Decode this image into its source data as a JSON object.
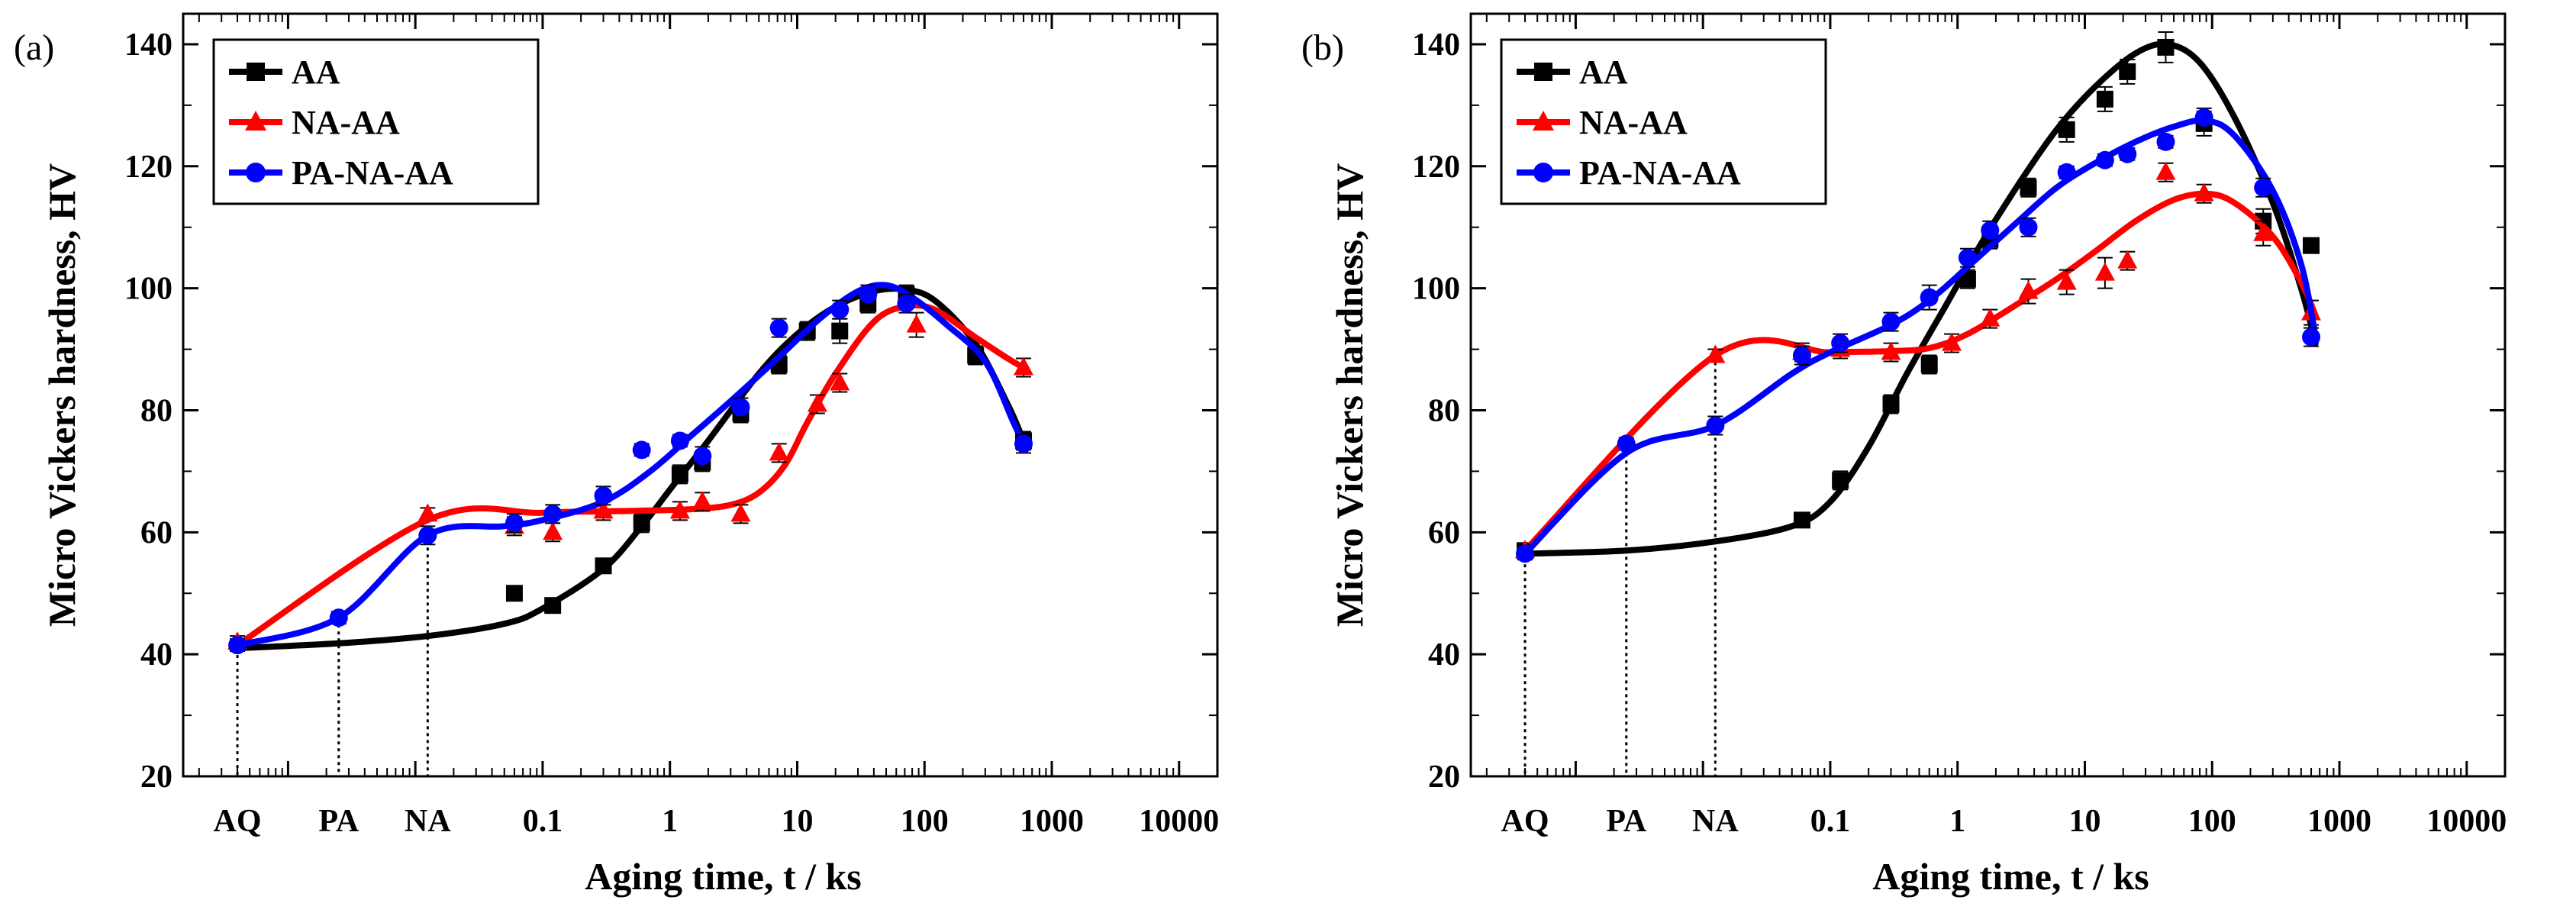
{
  "figure": {
    "x_axis_title": "Aging time, t / ks",
    "y_axis_title": "Micro Vickers hardness, HV"
  },
  "chart_data": [
    {
      "type": "scatter",
      "panel_label": "(a)",
      "x_scale": "log",
      "xlim": [
        0.00015,
        20000
      ],
      "ylim": [
        20,
        145
      ],
      "y_ticks": [
        20,
        40,
        60,
        80,
        100,
        120,
        140
      ],
      "x_ticks": [
        {
          "label": "AQ",
          "x": 0.0004
        },
        {
          "label": "PA",
          "x": 0.0025
        },
        {
          "label": "NA",
          "x": 0.0125
        },
        {
          "label": "0.1",
          "x": 0.1
        },
        {
          "label": "1",
          "x": 1
        },
        {
          "label": "10",
          "x": 10
        },
        {
          "label": "100",
          "x": 100
        },
        {
          "label": "1000",
          "x": 1000
        },
        {
          "label": "10000",
          "x": 10000
        }
      ],
      "drop_lines": [
        {
          "x": 0.0004,
          "y": 41
        },
        {
          "x": 0.0025,
          "y": 46
        },
        {
          "x": 0.0125,
          "y": 62
        }
      ],
      "legend_position": "top-left",
      "series": [
        {
          "name": "AA",
          "color": "#000000",
          "marker": "square",
          "points": [
            [
              0.06,
              50
            ],
            [
              0.12,
              48
            ],
            [
              0.3,
              54.5
            ],
            [
              0.6,
              61.5
            ],
            [
              1.2,
              69.5
            ],
            [
              1.8,
              71.5
            ],
            [
              3.6,
              79.5
            ],
            [
              7.2,
              87.5
            ],
            [
              12,
              93
            ],
            [
              21.6,
              93
            ],
            [
              36,
              97.5
            ],
            [
              72,
              99
            ],
            [
              252,
              89
            ],
            [
              600,
              75
            ]
          ],
          "errors": [
            1,
            1,
            1,
            1.5,
            1.5,
            1.5,
            1.5,
            1.5,
            1.5,
            2,
            1.5,
            1.5,
            1.5,
            1.5
          ],
          "curve": [
            [
              0.0004,
              41
            ],
            [
              0.0025,
              41.8
            ],
            [
              0.0125,
              43
            ],
            [
              0.05,
              45
            ],
            [
              0.1,
              47.5
            ],
            [
              0.3,
              54
            ],
            [
              0.6,
              61
            ],
            [
              1,
              67
            ],
            [
              2,
              75
            ],
            [
              5,
              86
            ],
            [
              10,
              92.5
            ],
            [
              20,
              97
            ],
            [
              40,
              99.5
            ],
            [
              70,
              99.8
            ],
            [
              120,
              98
            ],
            [
              250,
              91
            ],
            [
              450,
              81
            ],
            [
              600,
              75
            ]
          ]
        },
        {
          "name": "NA-AA",
          "color": "#ff0000",
          "marker": "triangle",
          "points": [
            [
              0.0004,
              42
            ],
            [
              0.0125,
              63
            ],
            [
              0.06,
              61
            ],
            [
              0.12,
              60
            ],
            [
              0.3,
              63.5
            ],
            [
              1.2,
              63.5
            ],
            [
              1.8,
              65
            ],
            [
              3.6,
              63
            ],
            [
              7.2,
              73
            ],
            [
              14.4,
              81
            ],
            [
              21.6,
              84.5
            ],
            [
              86.4,
              94
            ],
            [
              600,
              87
            ]
          ],
          "errors": [
            1,
            1,
            1.5,
            1.5,
            1.5,
            1.5,
            1.5,
            1.5,
            1.5,
            1.5,
            1.5,
            2,
            1.5
          ],
          "curve": [
            [
              0.0004,
              41.5
            ],
            [
              0.0125,
              62
            ],
            [
              0.1,
              63.2
            ],
            [
              0.5,
              63.5
            ],
            [
              1.5,
              63.8
            ],
            [
              3,
              64.5
            ],
            [
              5,
              66.5
            ],
            [
              8,
              71
            ],
            [
              12,
              78
            ],
            [
              20,
              86
            ],
            [
              40,
              94.5
            ],
            [
              70,
              97
            ],
            [
              120,
              96.5
            ],
            [
              250,
              92
            ],
            [
              450,
              88.5
            ],
            [
              600,
              87
            ]
          ]
        },
        {
          "name": "PA-NA-AA",
          "color": "#0000ff",
          "marker": "circle",
          "points": [
            [
              0.0004,
              41.5
            ],
            [
              0.0025,
              46
            ],
            [
              0.0125,
              59.5
            ],
            [
              0.06,
              61.5
            ],
            [
              0.12,
              63
            ],
            [
              0.3,
              66
            ],
            [
              0.6,
              73.5
            ],
            [
              1.2,
              75
            ],
            [
              1.8,
              72.5
            ],
            [
              3.6,
              80.5
            ],
            [
              7.2,
              93.5
            ],
            [
              21.6,
              96.5
            ],
            [
              36,
              99
            ],
            [
              72,
              97.5
            ],
            [
              600,
              74.5
            ]
          ],
          "errors": [
            1,
            1,
            1.5,
            1.5,
            1.5,
            1.5,
            1,
            1,
            1.5,
            1.5,
            1.5,
            1.5,
            1.5,
            1.5,
            1.5
          ],
          "curve": [
            [
              0.0004,
              41.5
            ],
            [
              0.0025,
              46
            ],
            [
              0.0125,
              59.5
            ],
            [
              0.05,
              61
            ],
            [
              0.1,
              62
            ],
            [
              0.3,
              65
            ],
            [
              0.7,
              70
            ],
            [
              1.5,
              76
            ],
            [
              3,
              81.5
            ],
            [
              7,
              88.5
            ],
            [
              15,
              95
            ],
            [
              30,
              99.5
            ],
            [
              50,
              100.5
            ],
            [
              80,
              98.5
            ],
            [
              150,
              94
            ],
            [
              300,
              88
            ],
            [
              500,
              78
            ],
            [
              600,
              74.5
            ]
          ]
        }
      ]
    },
    {
      "type": "scatter",
      "panel_label": "(b)",
      "x_scale": "log",
      "xlim": [
        0.00015,
        20000
      ],
      "ylim": [
        20,
        145
      ],
      "y_ticks": [
        20,
        40,
        60,
        80,
        100,
        120,
        140
      ],
      "x_ticks": [
        {
          "label": "AQ",
          "x": 0.0004
        },
        {
          "label": "PA",
          "x": 0.0025
        },
        {
          "label": "NA",
          "x": 0.0125
        },
        {
          "label": "0.1",
          "x": 0.1
        },
        {
          "label": "1",
          "x": 1
        },
        {
          "label": "10",
          "x": 10
        },
        {
          "label": "100",
          "x": 100
        },
        {
          "label": "1000",
          "x": 1000
        },
        {
          "label": "10000",
          "x": 10000
        }
      ],
      "drop_lines": [
        {
          "x": 0.0004,
          "y": 57
        },
        {
          "x": 0.0025,
          "y": 74
        },
        {
          "x": 0.0125,
          "y": 89
        }
      ],
      "legend_position": "top-left",
      "series": [
        {
          "name": "AA",
          "color": "#000000",
          "marker": "square",
          "points": [
            [
              0.0004,
              57
            ],
            [
              0.06,
              62
            ],
            [
              0.12,
              68.5
            ],
            [
              0.3,
              81
            ],
            [
              0.6,
              87.5
            ],
            [
              1.2,
              101.5
            ],
            [
              1.8,
              108
            ],
            [
              3.6,
              116.5
            ],
            [
              7.2,
              126
            ],
            [
              14.4,
              131
            ],
            [
              21.6,
              135.5
            ],
            [
              43.2,
              139.5
            ],
            [
              86.4,
              127
            ],
            [
              252,
              111
            ],
            [
              600,
              107
            ]
          ],
          "errors": [
            1,
            1,
            1.5,
            1.5,
            1.5,
            1.5,
            1.5,
            1.5,
            2,
            2,
            2,
            2.5,
            2,
            2,
            1
          ],
          "curve": [
            [
              0.0004,
              56.5
            ],
            [
              0.0025,
              57
            ],
            [
              0.0125,
              58.5
            ],
            [
              0.05,
              61
            ],
            [
              0.1,
              65
            ],
            [
              0.2,
              74
            ],
            [
              0.4,
              86
            ],
            [
              0.8,
              97
            ],
            [
              1.5,
              107
            ],
            [
              3,
              117
            ],
            [
              6,
              126
            ],
            [
              12,
              133
            ],
            [
              25,
              138.5
            ],
            [
              45,
              140
            ],
            [
              80,
              137
            ],
            [
              150,
              128
            ],
            [
              300,
              114
            ],
            [
              500,
              100
            ],
            [
              650,
              91
            ]
          ]
        },
        {
          "name": "NA-AA",
          "color": "#ff0000",
          "marker": "triangle",
          "points": [
            [
              0.0004,
              57
            ],
            [
              0.0125,
              89
            ],
            [
              0.06,
              89.5
            ],
            [
              0.12,
              90
            ],
            [
              0.3,
              89.5
            ],
            [
              0.9,
              91
            ],
            [
              1.8,
              95
            ],
            [
              3.6,
              99.5
            ],
            [
              7.2,
              101
            ],
            [
              14.4,
              102.5
            ],
            [
              21.6,
              104.5
            ],
            [
              43.2,
              119
            ],
            [
              86.4,
              115.5
            ],
            [
              252,
              109
            ],
            [
              600,
              96
            ]
          ],
          "errors": [
            1,
            1,
            1.5,
            1.5,
            1.5,
            1.5,
            1.5,
            2,
            2,
            2.5,
            1.5,
            1.5,
            1.5,
            2,
            2
          ],
          "curve": [
            [
              0.0004,
              57
            ],
            [
              0.0125,
              89
            ],
            [
              0.1,
              89.5
            ],
            [
              0.3,
              89.7
            ],
            [
              0.6,
              90.2
            ],
            [
              1.2,
              92.5
            ],
            [
              3,
              97.5
            ],
            [
              6,
              101.5
            ],
            [
              12,
              106
            ],
            [
              25,
              111
            ],
            [
              50,
              114.5
            ],
            [
              90,
              115.5
            ],
            [
              150,
              114
            ],
            [
              300,
              108.5
            ],
            [
              500,
              101
            ],
            [
              650,
              95.5
            ]
          ]
        },
        {
          "name": "PA-NA-AA",
          "color": "#0000ff",
          "marker": "circle",
          "points": [
            [
              0.0004,
              56.5
            ],
            [
              0.0025,
              74.5
            ],
            [
              0.0125,
              77.5
            ],
            [
              0.06,
              89
            ],
            [
              0.12,
              91
            ],
            [
              0.3,
              94.5
            ],
            [
              0.6,
              98.5
            ],
            [
              1.2,
              105
            ],
            [
              1.8,
              109.5
            ],
            [
              3.6,
              110
            ],
            [
              7.2,
              119
            ],
            [
              14.4,
              121
            ],
            [
              21.6,
              122
            ],
            [
              43.2,
              124
            ],
            [
              86.4,
              128
            ],
            [
              252,
              116.5
            ],
            [
              600,
              92
            ]
          ],
          "errors": [
            1,
            1,
            1.5,
            1.5,
            1.5,
            1.5,
            2,
            1.5,
            1.5,
            1.5,
            1,
            1,
            1,
            1,
            1.5,
            1.5,
            1.5
          ],
          "curve": [
            [
              0.0004,
              56.5
            ],
            [
              0.0025,
              73
            ],
            [
              0.0125,
              77.5
            ],
            [
              0.05,
              86
            ],
            [
              0.1,
              89.5
            ],
            [
              0.3,
              94
            ],
            [
              0.6,
              98
            ],
            [
              1.2,
              103.5
            ],
            [
              3,
              111
            ],
            [
              6,
              116.5
            ],
            [
              12,
              120.5
            ],
            [
              25,
              124
            ],
            [
              50,
              126.5
            ],
            [
              90,
              127.5
            ],
            [
              150,
              125
            ],
            [
              300,
              116
            ],
            [
              500,
              104
            ],
            [
              650,
              92
            ]
          ]
        }
      ]
    }
  ]
}
